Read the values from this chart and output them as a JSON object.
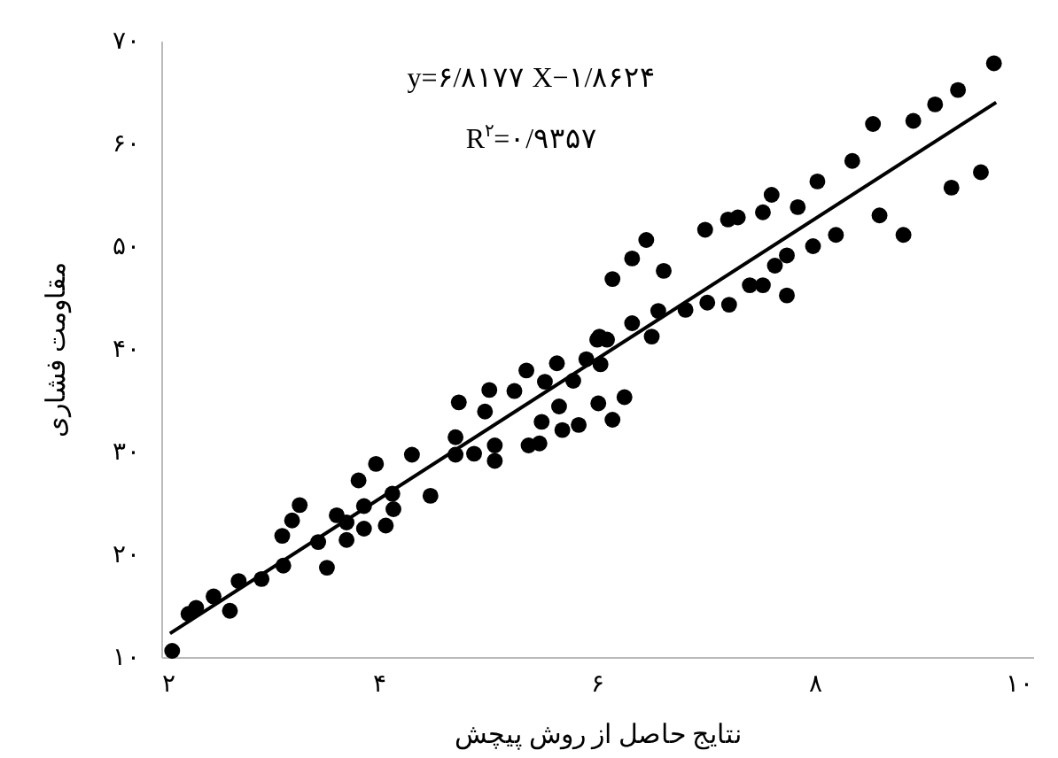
{
  "chart_data": {
    "type": "scatter",
    "xlabel": "نتایج حاصل از روش پیچش",
    "ylabel": "مقاومت فشاری",
    "annotations": [
      "y=۶/۸۱۷۷ X−۱/۸۶۲۴",
      "R$^{۲}$=۰/۹۳۵۷"
    ],
    "xlim": [
      2,
      10
    ],
    "ylim": [
      10,
      70
    ],
    "xticks": [
      {
        "value": 2,
        "label": "۲"
      },
      {
        "value": 4,
        "label": "۴"
      },
      {
        "value": 6,
        "label": "۶"
      },
      {
        "value": 8,
        "label": "۸"
      },
      {
        "value": 10,
        "label": "۱۰"
      }
    ],
    "yticks": [
      {
        "value": 10,
        "label": "۱۰"
      },
      {
        "value": 20,
        "label": "۲۰"
      },
      {
        "value": 30,
        "label": "۳۰"
      },
      {
        "value": 40,
        "label": "۴۰"
      },
      {
        "value": 50,
        "label": "۵۰"
      },
      {
        "value": 60,
        "label": "۶۰"
      },
      {
        "value": 70,
        "label": "۷۰"
      }
    ],
    "grid": false,
    "marker": "circle",
    "series": [
      {
        "color": "#000000",
        "x": [
          2.1,
          2.25,
          2.32,
          2.48,
          2.63,
          2.71,
          2.92,
          3.12,
          3.11,
          3.2,
          3.27,
          3.44,
          3.52,
          3.61,
          3.7,
          3.7,
          3.81,
          3.86,
          3.86,
          3.97,
          4.06,
          4.13,
          4.12,
          4.3,
          4.47,
          4.7,
          4.7,
          4.73,
          4.87,
          4.97,
          5.01,
          5.06,
          5.06,
          5.24,
          5.35,
          5.37,
          5.47,
          5.49,
          5.52,
          5.63,
          5.65,
          5.68,
          5.78,
          5.83,
          5.9,
          6.0,
          6.01,
          6.03,
          6.25,
          6.14,
          6.09,
          6.02,
          6.32,
          6.5,
          6.56,
          6.81,
          7.01,
          7.21,
          7.4,
          7.52,
          7.74,
          7.63,
          7.74,
          7.98,
          8.19,
          8.81,
          8.59,
          9.25,
          9.52,
          6.14,
          6.32,
          6.45,
          6.61,
          6.99,
          7.2,
          7.29,
          7.52,
          7.6,
          7.84,
          8.02,
          8.34,
          8.53,
          8.9,
          9.1,
          9.31,
          9.64
        ],
        "values": [
          10.6,
          14.2,
          14.8,
          15.9,
          14.5,
          17.4,
          17.6,
          18.9,
          21.8,
          23.3,
          24.8,
          21.2,
          18.7,
          23.8,
          21.4,
          23.1,
          27.2,
          24.7,
          22.5,
          28.8,
          22.8,
          24.4,
          25.9,
          29.7,
          25.7,
          29.7,
          31.4,
          34.8,
          29.8,
          33.9,
          36.0,
          30.6,
          29.1,
          35.9,
          37.9,
          30.6,
          30.8,
          32.9,
          36.8,
          38.6,
          34.4,
          32.1,
          36.9,
          32.6,
          39.0,
          40.9,
          34.7,
          38.5,
          35.3,
          33.1,
          40.9,
          41.2,
          42.5,
          41.2,
          43.7,
          43.8,
          44.5,
          44.3,
          46.2,
          46.2,
          45.2,
          48.1,
          49.1,
          50.0,
          51.1,
          51.1,
          53.0,
          55.7,
          57.2,
          46.8,
          48.8,
          50.6,
          47.6,
          51.6,
          52.6,
          52.8,
          53.3,
          55.0,
          53.8,
          56.3,
          58.3,
          61.9,
          62.2,
          63.8,
          65.2,
          67.8
        ]
      },
      {
        "type": "line",
        "color": "#000000",
        "marker": "none",
        "line_style": "solid",
        "x": [
          2.08,
          9.66
        ],
        "values": [
          12.3,
          64.0
        ]
      }
    ]
  }
}
